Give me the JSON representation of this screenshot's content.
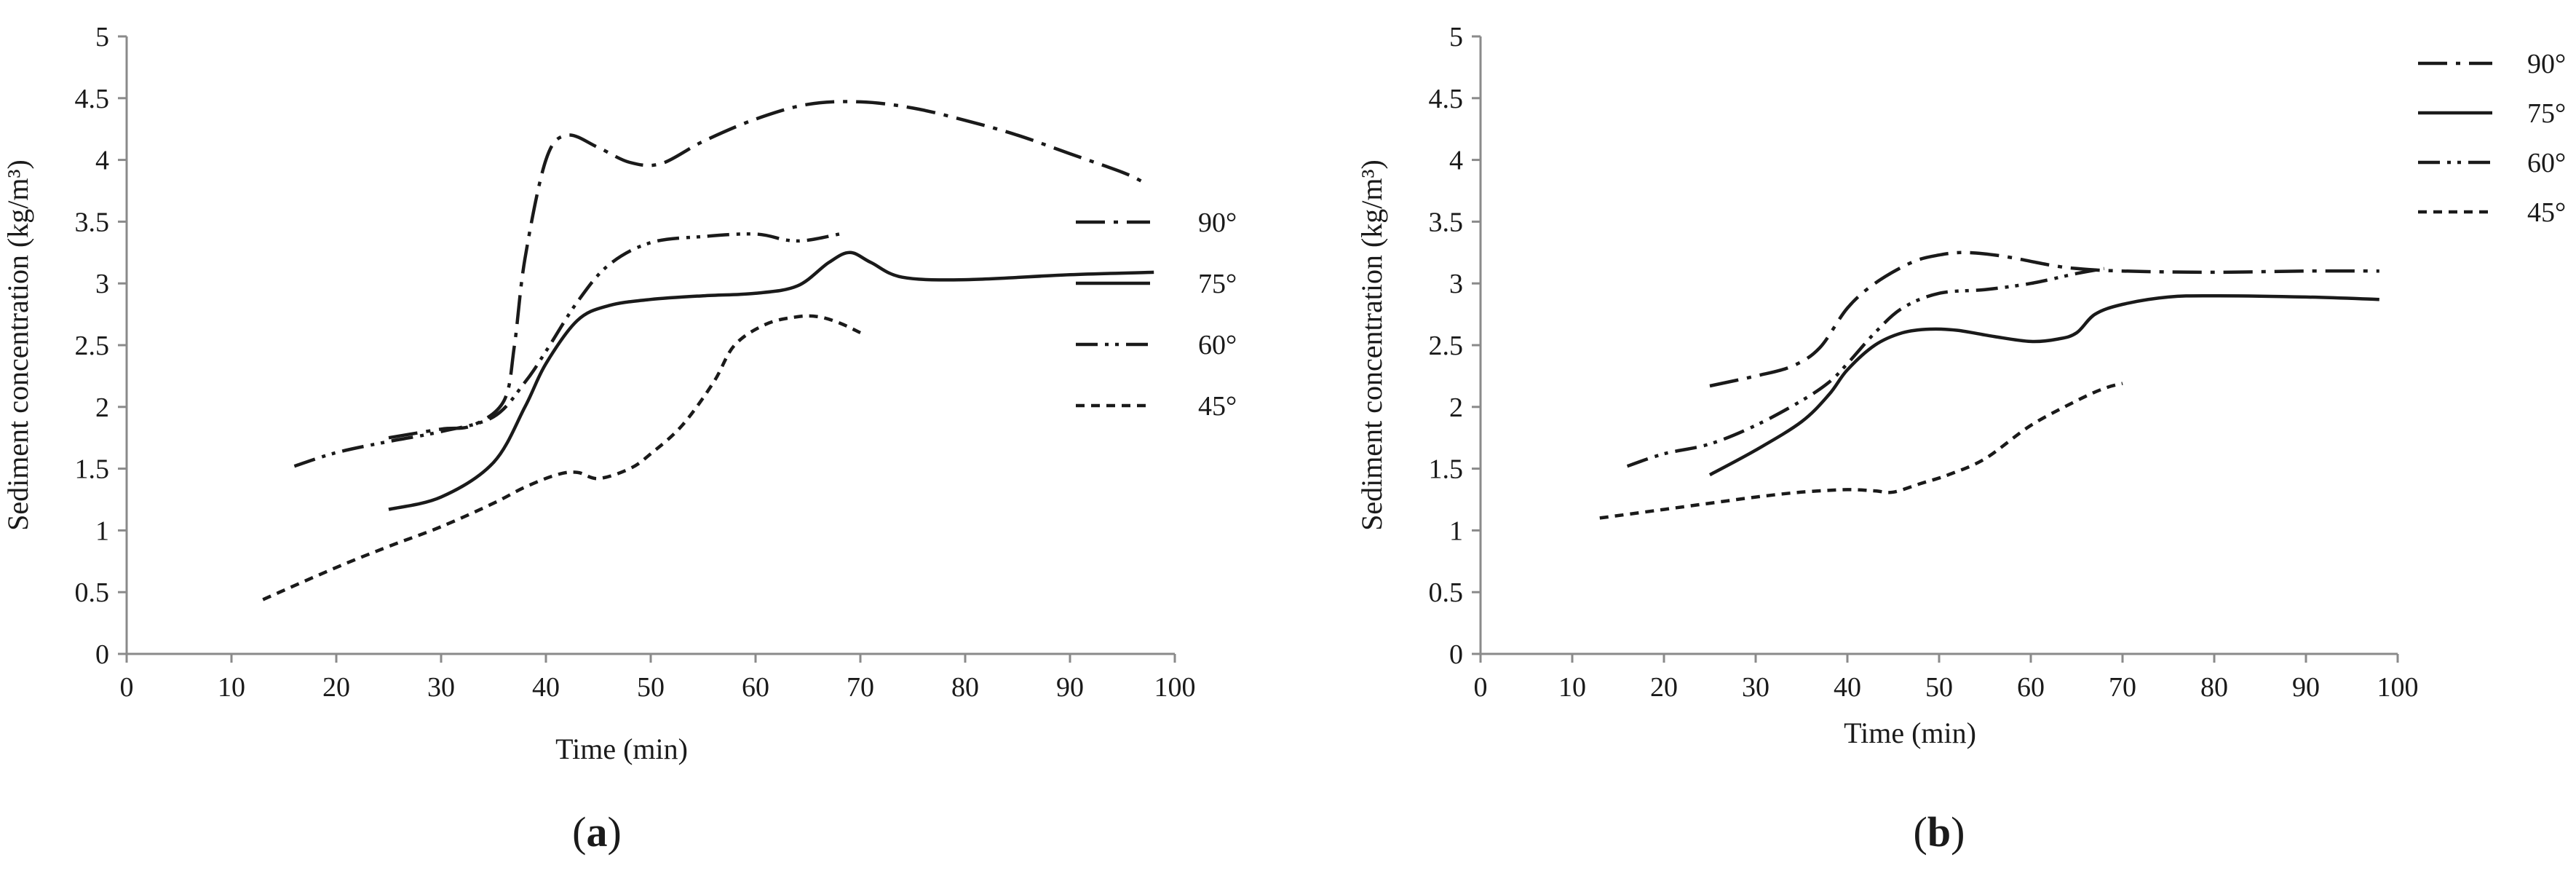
{
  "chart_data": [
    {
      "type": "line",
      "panel_label": {
        "open": "(",
        "letter": "a",
        "close": ")"
      },
      "xlabel": "Time (min)",
      "ylabel": "Sediment concentration (kg/m³)",
      "xlim": [
        0,
        100
      ],
      "ylim": [
        0,
        5
      ],
      "xticks": [
        0,
        10,
        20,
        30,
        40,
        50,
        60,
        70,
        80,
        90,
        100
      ],
      "yticks": [
        0,
        0.5,
        1,
        1.5,
        2,
        2.5,
        3,
        3.5,
        4,
        4.5,
        5
      ],
      "grid": false,
      "legend_position": "right",
      "series": [
        {
          "name": "90°",
          "style": "dash-dot",
          "points": [
            [
              25,
              1.75
            ],
            [
              30,
              1.82
            ],
            [
              33,
              1.85
            ],
            [
              36,
              2.05
            ],
            [
              37,
              2.5
            ],
            [
              38,
              3.2
            ],
            [
              40,
              4.0
            ],
            [
              42,
              4.2
            ],
            [
              45,
              4.1
            ],
            [
              48,
              3.98
            ],
            [
              51,
              3.97
            ],
            [
              55,
              4.15
            ],
            [
              60,
              4.33
            ],
            [
              65,
              4.45
            ],
            [
              70,
              4.47
            ],
            [
              75,
              4.42
            ],
            [
              80,
              4.32
            ],
            [
              85,
              4.2
            ],
            [
              90,
              4.05
            ],
            [
              95,
              3.9
            ],
            [
              97,
              3.82
            ]
          ]
        },
        {
          "name": "75°",
          "style": "solid",
          "points": [
            [
              25,
              1.17
            ],
            [
              30,
              1.27
            ],
            [
              35,
              1.55
            ],
            [
              38,
              2.0
            ],
            [
              40,
              2.35
            ],
            [
              43,
              2.7
            ],
            [
              46,
              2.82
            ],
            [
              50,
              2.87
            ],
            [
              55,
              2.9
            ],
            [
              60,
              2.92
            ],
            [
              64,
              2.98
            ],
            [
              67,
              3.17
            ],
            [
              69,
              3.25
            ],
            [
              71,
              3.17
            ],
            [
              74,
              3.05
            ],
            [
              80,
              3.03
            ],
            [
              90,
              3.07
            ],
            [
              98,
              3.09
            ]
          ]
        },
        {
          "name": "60°",
          "style": "dash-dot-dot",
          "points": [
            [
              16,
              1.52
            ],
            [
              20,
              1.63
            ],
            [
              25,
              1.72
            ],
            [
              30,
              1.8
            ],
            [
              35,
              1.92
            ],
            [
              38,
              2.2
            ],
            [
              40,
              2.45
            ],
            [
              43,
              2.85
            ],
            [
              46,
              3.15
            ],
            [
              50,
              3.33
            ],
            [
              55,
              3.38
            ],
            [
              60,
              3.4
            ],
            [
              63,
              3.35
            ],
            [
              65,
              3.35
            ],
            [
              68,
              3.4
            ]
          ]
        },
        {
          "name": "45°",
          "style": "dashed",
          "points": [
            [
              13,
              0.44
            ],
            [
              20,
              0.7
            ],
            [
              25,
              0.87
            ],
            [
              30,
              1.03
            ],
            [
              35,
              1.22
            ],
            [
              38,
              1.35
            ],
            [
              41,
              1.45
            ],
            [
              43,
              1.47
            ],
            [
              45,
              1.42
            ],
            [
              48,
              1.5
            ],
            [
              50,
              1.62
            ],
            [
              53,
              1.85
            ],
            [
              56,
              2.2
            ],
            [
              58,
              2.5
            ],
            [
              61,
              2.67
            ],
            [
              64,
              2.73
            ],
            [
              66,
              2.73
            ],
            [
              68,
              2.68
            ],
            [
              70,
              2.6
            ]
          ]
        }
      ]
    },
    {
      "type": "line",
      "panel_label": {
        "open": "(",
        "letter": "b",
        "close": ")"
      },
      "xlabel": "Time (min)",
      "ylabel": "Sediment concentration (kg/m³)",
      "xlim": [
        0,
        100
      ],
      "ylim": [
        0,
        5
      ],
      "xticks": [
        0,
        10,
        20,
        30,
        40,
        50,
        60,
        70,
        80,
        90,
        100
      ],
      "yticks": [
        0,
        0.5,
        1,
        1.5,
        2,
        2.5,
        3,
        3.5,
        4,
        4.5,
        5
      ],
      "grid": false,
      "legend_position": "top-right",
      "series": [
        {
          "name": "90°",
          "style": "dash-dot",
          "points": [
            [
              25,
              2.17
            ],
            [
              30,
              2.25
            ],
            [
              34,
              2.33
            ],
            [
              37,
              2.48
            ],
            [
              40,
              2.8
            ],
            [
              43,
              3.0
            ],
            [
              47,
              3.17
            ],
            [
              50,
              3.23
            ],
            [
              53,
              3.25
            ],
            [
              57,
              3.22
            ],
            [
              62,
              3.15
            ],
            [
              65,
              3.12
            ],
            [
              70,
              3.1
            ],
            [
              80,
              3.09
            ],
            [
              90,
              3.1
            ],
            [
              98,
              3.1
            ]
          ]
        },
        {
          "name": "75°",
          "style": "solid",
          "points": [
            [
              25,
              1.45
            ],
            [
              30,
              1.65
            ],
            [
              35,
              1.88
            ],
            [
              38,
              2.1
            ],
            [
              40,
              2.3
            ],
            [
              43,
              2.5
            ],
            [
              46,
              2.6
            ],
            [
              49,
              2.63
            ],
            [
              52,
              2.62
            ],
            [
              56,
              2.57
            ],
            [
              60,
              2.53
            ],
            [
              63,
              2.55
            ],
            [
              65,
              2.6
            ],
            [
              67,
              2.75
            ],
            [
              70,
              2.83
            ],
            [
              75,
              2.89
            ],
            [
              80,
              2.9
            ],
            [
              90,
              2.89
            ],
            [
              98,
              2.87
            ]
          ]
        },
        {
          "name": "60°",
          "style": "dash-dot-dot",
          "points": [
            [
              16,
              1.52
            ],
            [
              20,
              1.62
            ],
            [
              25,
              1.7
            ],
            [
              30,
              1.85
            ],
            [
              35,
              2.05
            ],
            [
              38,
              2.2
            ],
            [
              40,
              2.35
            ],
            [
              43,
              2.6
            ],
            [
              46,
              2.8
            ],
            [
              50,
              2.92
            ],
            [
              55,
              2.95
            ],
            [
              60,
              3.0
            ],
            [
              65,
              3.08
            ],
            [
              68,
              3.12
            ]
          ]
        },
        {
          "name": "45°",
          "style": "dashed",
          "points": [
            [
              13,
              1.1
            ],
            [
              20,
              1.17
            ],
            [
              25,
              1.22
            ],
            [
              30,
              1.27
            ],
            [
              35,
              1.31
            ],
            [
              40,
              1.33
            ],
            [
              43,
              1.32
            ],
            [
              45,
              1.31
            ],
            [
              48,
              1.38
            ],
            [
              51,
              1.45
            ],
            [
              55,
              1.58
            ],
            [
              60,
              1.85
            ],
            [
              65,
              2.05
            ],
            [
              68,
              2.15
            ],
            [
              70,
              2.19
            ]
          ]
        }
      ]
    }
  ]
}
